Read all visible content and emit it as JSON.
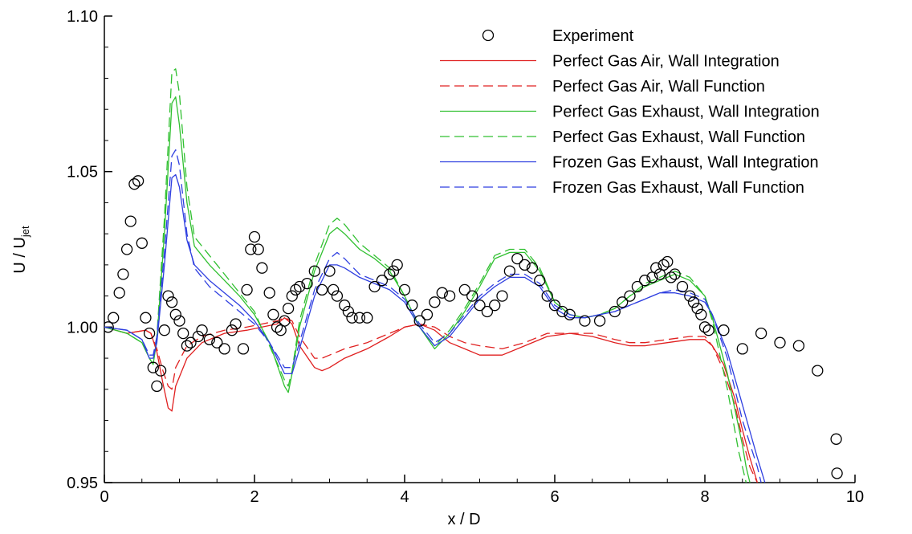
{
  "chart_data": {
    "type": "line",
    "xlabel": "x / D",
    "ylabel_main": "U / U",
    "ylabel_sub": "jet",
    "xlim": [
      0,
      10
    ],
    "ylim": [
      0.95,
      1.1
    ],
    "xticks": [
      0,
      2,
      4,
      6,
      8,
      10
    ],
    "yticks": [
      0.95,
      1.0,
      1.05,
      1.1
    ],
    "ytick_labels": [
      "0.95",
      "1.00",
      "1.05",
      "1.10"
    ],
    "xticks_minor": [
      0.5,
      1,
      1.5,
      2.5,
      3,
      3.5,
      4.5,
      5,
      5.5,
      6.5,
      7,
      7.5,
      8.5,
      9,
      9.5
    ],
    "yticks_minor": [
      0.96,
      0.97,
      0.98,
      0.99,
      1.01,
      1.02,
      1.03,
      1.04,
      1.06,
      1.07,
      1.08,
      1.09
    ],
    "grid": false,
    "legend_position": "top-right",
    "experiment": {
      "name": "Experiment",
      "marker": "open-circle",
      "x": [
        0.05,
        0.12,
        0.2,
        0.25,
        0.3,
        0.35,
        0.4,
        0.45,
        0.5,
        0.55,
        0.6,
        0.65,
        0.7,
        0.75,
        0.8,
        0.85,
        0.9,
        0.95,
        1.0,
        1.05,
        1.1,
        1.15,
        1.25,
        1.3,
        1.4,
        1.5,
        1.6,
        1.7,
        1.75,
        1.85,
        1.9,
        1.95,
        2.0,
        2.05,
        2.1,
        2.2,
        2.25,
        2.3,
        2.35,
        2.4,
        2.45,
        2.5,
        2.55,
        2.6,
        2.7,
        2.8,
        2.9,
        3.0,
        3.05,
        3.1,
        3.2,
        3.25,
        3.3,
        3.4,
        3.5,
        3.6,
        3.7,
        3.8,
        3.85,
        3.9,
        4.0,
        4.1,
        4.2,
        4.3,
        4.4,
        4.5,
        4.6,
        4.8,
        4.9,
        5.0,
        5.1,
        5.2,
        5.3,
        5.4,
        5.5,
        5.6,
        5.7,
        5.8,
        5.9,
        6.0,
        6.1,
        6.2,
        6.4,
        6.6,
        6.8,
        6.9,
        7.0,
        7.1,
        7.2,
        7.3,
        7.35,
        7.4,
        7.45,
        7.5,
        7.55,
        7.6,
        7.7,
        7.8,
        7.85,
        7.9,
        7.95,
        8.0,
        8.05,
        8.25,
        8.5,
        8.75,
        9.0,
        9.25,
        9.5,
        9.75,
        9.76
      ],
      "y": [
        1.0,
        1.003,
        1.011,
        1.017,
        1.025,
        1.034,
        1.046,
        1.047,
        1.027,
        1.003,
        0.998,
        0.987,
        0.981,
        0.986,
        0.999,
        1.01,
        1.008,
        1.004,
        1.002,
        0.998,
        0.994,
        0.995,
        0.997,
        0.999,
        0.996,
        0.995,
        0.993,
        0.999,
        1.001,
        0.993,
        1.012,
        1.025,
        1.029,
        1.025,
        1.019,
        1.011,
        1.004,
        1.0,
        0.999,
        1.002,
        1.006,
        1.01,
        1.012,
        1.013,
        1.014,
        1.018,
        1.012,
        1.018,
        1.012,
        1.01,
        1.007,
        1.005,
        1.003,
        1.003,
        1.003,
        1.013,
        1.015,
        1.017,
        1.018,
        1.02,
        1.012,
        1.007,
        1.002,
        1.004,
        1.008,
        1.011,
        1.01,
        1.012,
        1.01,
        1.007,
        1.005,
        1.007,
        1.01,
        1.018,
        1.022,
        1.02,
        1.019,
        1.015,
        1.01,
        1.007,
        1.005,
        1.004,
        1.002,
        1.002,
        1.005,
        1.008,
        1.01,
        1.013,
        1.015,
        1.016,
        1.019,
        1.017,
        1.02,
        1.021,
        1.016,
        1.017,
        1.013,
        1.01,
        1.008,
        1.006,
        1.004,
        1.0,
        0.999,
        0.999,
        0.993,
        0.998,
        0.995,
        0.994,
        0.986,
        0.964,
        0.953
      ]
    },
    "series": [
      {
        "name": "Perfect Gas Air, Wall Integration",
        "color": "#e02020",
        "dash": "solid",
        "x": [
          0,
          0.3,
          0.55,
          0.62,
          0.7,
          0.78,
          0.85,
          0.9,
          0.95,
          1.1,
          1.3,
          1.6,
          1.9,
          2.1,
          2.3,
          2.4,
          2.5,
          2.6,
          2.8,
          2.9,
          3.0,
          3.2,
          3.5,
          3.8,
          4.0,
          4.2,
          4.4,
          4.6,
          4.8,
          5.0,
          5.3,
          5.6,
          5.9,
          6.2,
          6.5,
          6.8,
          7.0,
          7.2,
          7.5,
          7.8,
          8.0,
          8.1,
          8.25,
          8.4,
          8.5,
          8.6,
          8.7
        ],
        "y": [
          1.0,
          0.998,
          0.999,
          0.998,
          0.992,
          0.982,
          0.974,
          0.973,
          0.981,
          0.99,
          0.995,
          0.998,
          0.999,
          1.0,
          1.001,
          1.003,
          1.001,
          0.994,
          0.987,
          0.986,
          0.987,
          0.99,
          0.993,
          0.997,
          1.0,
          1.001,
          0.999,
          0.995,
          0.993,
          0.991,
          0.991,
          0.994,
          0.997,
          0.998,
          0.997,
          0.995,
          0.994,
          0.994,
          0.995,
          0.996,
          0.996,
          0.994,
          0.988,
          0.977,
          0.967,
          0.958,
          0.95
        ]
      },
      {
        "name": "Perfect Gas Air, Wall Function",
        "color": "#e02020",
        "dash": "dashed",
        "x": [
          0,
          0.3,
          0.55,
          0.62,
          0.7,
          0.78,
          0.85,
          0.9,
          0.95,
          1.1,
          1.3,
          1.6,
          1.9,
          2.1,
          2.3,
          2.4,
          2.5,
          2.6,
          2.8,
          2.9,
          3.0,
          3.2,
          3.5,
          3.8,
          4.0,
          4.2,
          4.4,
          4.6,
          4.8,
          5.0,
          5.3,
          5.6,
          5.9,
          6.2,
          6.5,
          6.8,
          7.0,
          7.2,
          7.5,
          7.8,
          8.0,
          8.1,
          8.25,
          8.4,
          8.5,
          8.6,
          8.7
        ],
        "y": [
          1.0,
          0.998,
          0.999,
          0.998,
          0.993,
          0.986,
          0.981,
          0.98,
          0.987,
          0.994,
          0.997,
          0.999,
          1.0,
          1.001,
          1.002,
          1.003,
          1.002,
          0.997,
          0.99,
          0.99,
          0.991,
          0.993,
          0.995,
          0.998,
          1.0,
          1.001,
          1.0,
          0.997,
          0.995,
          0.994,
          0.993,
          0.995,
          0.998,
          0.998,
          0.998,
          0.996,
          0.995,
          0.995,
          0.996,
          0.997,
          0.997,
          0.994,
          0.986,
          0.975,
          0.964,
          0.955,
          0.95
        ]
      },
      {
        "name": "Perfect Gas Exhaust, Wall Integration",
        "color": "#30c030",
        "dash": "solid",
        "x": [
          0,
          0.3,
          0.5,
          0.6,
          0.65,
          0.7,
          0.8,
          0.9,
          0.95,
          1.0,
          1.1,
          1.2,
          1.4,
          1.6,
          1.8,
          2.0,
          2.2,
          2.4,
          2.45,
          2.5,
          2.6,
          2.8,
          3.0,
          3.1,
          3.2,
          3.4,
          3.6,
          3.8,
          4.0,
          4.2,
          4.4,
          4.6,
          4.8,
          5.0,
          5.2,
          5.4,
          5.6,
          5.8,
          6.0,
          6.2,
          6.4,
          6.6,
          6.8,
          7.0,
          7.2,
          7.4,
          7.6,
          7.8,
          8.0,
          8.1,
          8.3,
          8.5,
          8.55,
          8.6
        ],
        "y": [
          1.0,
          0.998,
          0.995,
          0.99,
          0.988,
          0.996,
          1.03,
          1.072,
          1.074,
          1.065,
          1.04,
          1.026,
          1.02,
          1.015,
          1.01,
          1.004,
          0.995,
          0.981,
          0.979,
          0.985,
          1.0,
          1.018,
          1.03,
          1.032,
          1.03,
          1.025,
          1.022,
          1.018,
          1.01,
          1.0,
          0.993,
          0.998,
          1.005,
          1.013,
          1.022,
          1.024,
          1.024,
          1.018,
          1.008,
          1.004,
          1.003,
          1.004,
          1.006,
          1.01,
          1.013,
          1.015,
          1.017,
          1.015,
          1.01,
          1.003,
          0.985,
          0.962,
          0.955,
          0.95
        ]
      },
      {
        "name": "Perfect Gas Exhaust, Wall Function",
        "color": "#30c030",
        "dash": "dashed",
        "x": [
          0,
          0.3,
          0.5,
          0.6,
          0.65,
          0.7,
          0.8,
          0.9,
          0.95,
          1.0,
          1.1,
          1.2,
          1.4,
          1.6,
          1.8,
          2.0,
          2.2,
          2.4,
          2.45,
          2.5,
          2.6,
          2.8,
          3.0,
          3.1,
          3.2,
          3.4,
          3.6,
          3.8,
          4.0,
          4.2,
          4.4,
          4.6,
          4.8,
          5.0,
          5.2,
          5.4,
          5.6,
          5.8,
          6.0,
          6.2,
          6.4,
          6.6,
          6.8,
          7.0,
          7.2,
          7.4,
          7.6,
          7.8,
          8.0,
          8.1,
          8.3,
          8.45,
          8.5,
          8.55
        ],
        "y": [
          1.0,
          0.998,
          0.995,
          0.99,
          0.988,
          0.997,
          1.035,
          1.082,
          1.083,
          1.075,
          1.045,
          1.029,
          1.023,
          1.017,
          1.011,
          1.005,
          0.994,
          0.983,
          0.981,
          0.986,
          1.002,
          1.02,
          1.033,
          1.035,
          1.033,
          1.027,
          1.023,
          1.019,
          1.01,
          1.0,
          0.994,
          0.999,
          1.006,
          1.014,
          1.023,
          1.025,
          1.025,
          1.019,
          1.008,
          1.004,
          1.003,
          1.004,
          1.006,
          1.01,
          1.014,
          1.016,
          1.018,
          1.016,
          1.01,
          1.002,
          0.98,
          0.96,
          0.955,
          0.95
        ]
      },
      {
        "name": "Frozen Gas Exhaust, Wall Integration",
        "color": "#2f3fe0",
        "dash": "solid",
        "x": [
          0,
          0.3,
          0.5,
          0.6,
          0.65,
          0.7,
          0.8,
          0.9,
          0.95,
          1.0,
          1.1,
          1.2,
          1.4,
          1.6,
          1.8,
          2.0,
          2.2,
          2.4,
          2.5,
          2.6,
          2.8,
          3.0,
          3.1,
          3.2,
          3.4,
          3.6,
          3.8,
          4.0,
          4.2,
          4.4,
          4.6,
          4.8,
          5.0,
          5.2,
          5.4,
          5.6,
          5.8,
          6.0,
          6.2,
          6.4,
          6.6,
          6.8,
          7.0,
          7.2,
          7.4,
          7.6,
          7.8,
          8.0,
          8.1,
          8.3,
          8.5,
          8.7,
          8.8
        ],
        "y": [
          1.0,
          0.999,
          0.996,
          0.99,
          0.99,
          0.995,
          1.02,
          1.048,
          1.049,
          1.045,
          1.028,
          1.02,
          1.015,
          1.011,
          1.007,
          1.002,
          0.995,
          0.985,
          0.985,
          0.993,
          1.01,
          1.02,
          1.02,
          1.019,
          1.016,
          1.014,
          1.012,
          1.008,
          1.0,
          0.994,
          0.997,
          1.003,
          1.009,
          1.013,
          1.016,
          1.016,
          1.013,
          1.006,
          1.003,
          1.003,
          1.004,
          1.005,
          1.007,
          1.009,
          1.011,
          1.011,
          1.01,
          1.008,
          1.004,
          0.992,
          0.975,
          0.958,
          0.95
        ]
      },
      {
        "name": "Frozen Gas Exhaust, Wall Function",
        "color": "#2f3fe0",
        "dash": "dashed",
        "x": [
          0,
          0.3,
          0.5,
          0.6,
          0.65,
          0.7,
          0.8,
          0.9,
          0.95,
          1.0,
          1.1,
          1.2,
          1.4,
          1.6,
          1.8,
          2.0,
          2.2,
          2.4,
          2.5,
          2.6,
          2.8,
          3.0,
          3.1,
          3.2,
          3.4,
          3.6,
          3.8,
          4.0,
          4.2,
          4.4,
          4.6,
          4.8,
          5.0,
          5.2,
          5.4,
          5.6,
          5.8,
          6.0,
          6.2,
          6.4,
          6.6,
          6.8,
          7.0,
          7.2,
          7.4,
          7.6,
          7.8,
          8.0,
          8.1,
          8.3,
          8.5,
          8.7,
          8.75
        ],
        "y": [
          1.0,
          0.999,
          0.996,
          0.991,
          0.991,
          0.997,
          1.024,
          1.055,
          1.057,
          1.052,
          1.03,
          1.019,
          1.013,
          1.009,
          1.005,
          1.001,
          0.995,
          0.987,
          0.987,
          0.995,
          1.012,
          1.022,
          1.024,
          1.022,
          1.017,
          1.015,
          1.013,
          1.009,
          1.001,
          0.995,
          0.998,
          1.004,
          1.01,
          1.014,
          1.017,
          1.017,
          1.014,
          1.007,
          1.004,
          1.003,
          1.004,
          1.005,
          1.007,
          1.009,
          1.011,
          1.012,
          1.011,
          1.009,
          1.004,
          0.99,
          0.97,
          0.955,
          0.95
        ]
      }
    ]
  }
}
